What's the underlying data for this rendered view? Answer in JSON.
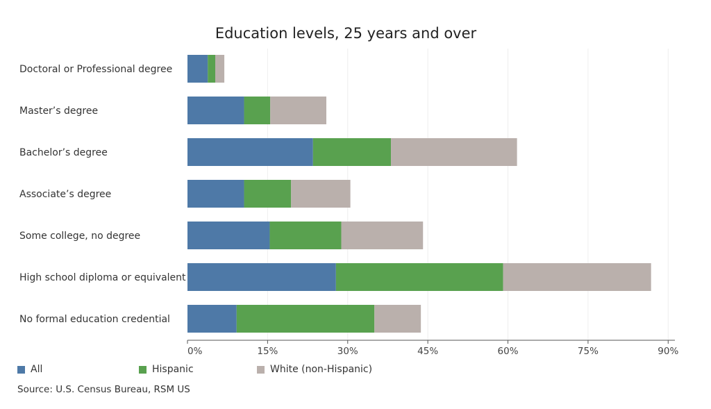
{
  "chart_data": {
    "type": "bar",
    "orientation": "horizontal",
    "stacked": true,
    "title": "Education levels, 25 years and over",
    "xlabel": "",
    "ylabel": "",
    "xlim": [
      0,
      91
    ],
    "x_ticks": [
      0,
      15,
      30,
      45,
      60,
      75,
      90
    ],
    "x_tick_labels": [
      "0%",
      "15%",
      "30%",
      "45%",
      "60%",
      "75%",
      "90%"
    ],
    "grid": true,
    "legend_position": "bottom-left",
    "categories": [
      "Doctoral or Professional degree",
      "Master’s degree",
      "Bachelor’s degree",
      "Associate’s degree",
      "Some college, no degree",
      "High school diploma or equivalent",
      "No formal education credential"
    ],
    "series": [
      {
        "name": "All",
        "color": "#4e79a7",
        "values": [
          3.8,
          10.6,
          23.5,
          10.6,
          15.4,
          27.8,
          9.2
        ]
      },
      {
        "name": "Hispanic",
        "color": "#59a14f",
        "values": [
          1.4,
          4.9,
          14.6,
          8.8,
          13.4,
          31.3,
          25.8
        ]
      },
      {
        "name": "White (non-Hispanic)",
        "color": "#bab0ac",
        "values": [
          1.7,
          10.5,
          23.6,
          11.1,
          15.3,
          27.7,
          8.7
        ]
      }
    ]
  },
  "source": "Source: U.S. Census Bureau, RSM US"
}
